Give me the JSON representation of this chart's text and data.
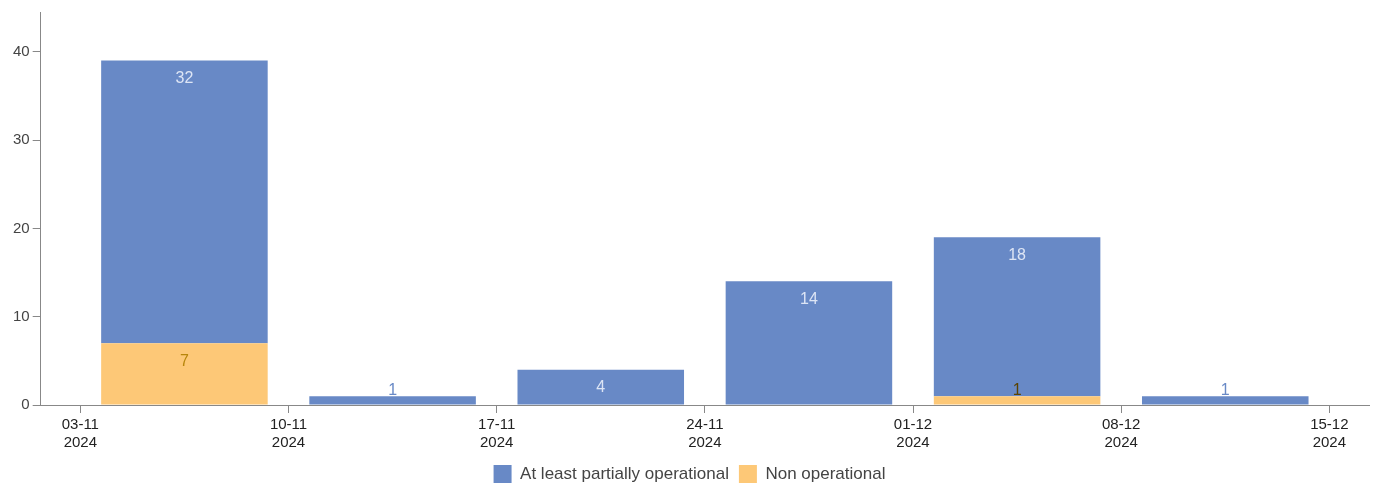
{
  "chart_data": {
    "type": "bar",
    "stacked": true,
    "x": [
      "2024-11-06T12:00",
      "2024-11-13T12:00",
      "2024-11-20T12:00",
      "2024-11-27T12:00",
      "2024-12-04T12:00",
      "2024-12-11T12:00"
    ],
    "series": [
      {
        "name": "Non operational",
        "color": "#fdc877",
        "values": [
          7,
          null,
          null,
          null,
          1,
          null
        ]
      },
      {
        "name": "At least partially operational",
        "color": "#6889c6",
        "values": [
          32,
          1,
          4,
          14,
          18,
          1
        ]
      }
    ],
    "xlim": [
      "2024-11-01T16:00",
      "2024-12-16T08:00"
    ],
    "xticks": [
      {
        "value": "2024-11-03",
        "label": "03-11\n2024"
      },
      {
        "value": "2024-11-10",
        "label": "10-11\n2024"
      },
      {
        "value": "2024-11-17",
        "label": "17-11\n2024"
      },
      {
        "value": "2024-11-24",
        "label": "24-11\n2024"
      },
      {
        "value": "2024-12-01",
        "label": "01-12\n2024"
      },
      {
        "value": "2024-12-08",
        "label": "08-12\n2024"
      },
      {
        "value": "2024-12-15",
        "label": "15-12\n2024"
      }
    ],
    "ylim": [
      0,
      44.5
    ],
    "yticks": [
      0,
      10,
      20,
      30,
      40
    ],
    "grid": false,
    "legend": "bottom",
    "data_labels": true
  }
}
